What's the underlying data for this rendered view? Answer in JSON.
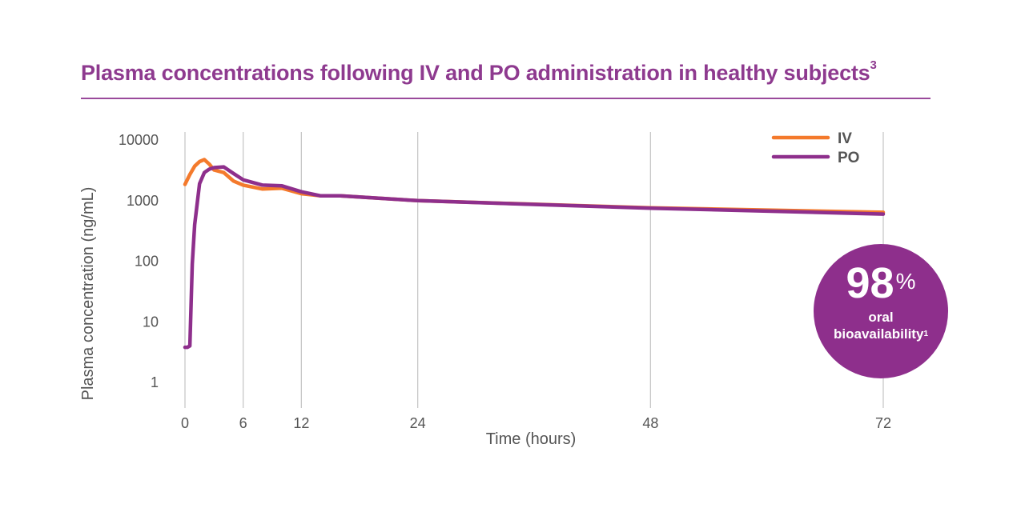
{
  "header": {
    "title": "Plasma concentrations following IV and PO administration in healthy subjects",
    "title_superscript": "3"
  },
  "colors": {
    "title": "#8e3a8f",
    "iv": "#f47a2c",
    "po": "#8e2f8c",
    "grid": "#c8c8c8",
    "axis_text": "#555555",
    "badge": "#8e2f8c"
  },
  "badge": {
    "value": "98",
    "unit": "%",
    "line1": "oral",
    "line2": "bioavailability",
    "line2_superscript": "1"
  },
  "chart_data": {
    "type": "line",
    "title": "Plasma concentrations following IV and PO administration in healthy subjects",
    "xlabel": "Time (hours)",
    "ylabel": "Plasma concentration (ng/mL)",
    "x_scale": "linear",
    "y_scale": "log",
    "xlim": [
      0,
      72
    ],
    "ylim": [
      1,
      10000
    ],
    "x_ticks": [
      0,
      6,
      12,
      24,
      48,
      72
    ],
    "y_ticks": [
      1,
      10,
      100,
      1000,
      10000
    ],
    "x_tick_labels": [
      "0",
      "6",
      "12",
      "24",
      "48",
      "72"
    ],
    "y_tick_labels": [
      "1",
      "10",
      "100",
      "1000",
      "10000"
    ],
    "grid": "vertical lines at x ticks",
    "legend_position": "top-right",
    "series": [
      {
        "name": "IV",
        "x": [
          0,
          0.5,
          1,
          1.5,
          2,
          2.5,
          3,
          4,
          5,
          6,
          8,
          10,
          12,
          14,
          16,
          24,
          48,
          72
        ],
        "y": [
          1850,
          2700,
          3700,
          4400,
          4750,
          4000,
          3200,
          2900,
          2100,
          1800,
          1550,
          1600,
          1300,
          1200,
          1200,
          1000,
          760,
          640
        ]
      },
      {
        "name": "PO",
        "x": [
          0,
          0.25,
          0.5,
          0.75,
          1,
          1.5,
          2,
          2.5,
          3,
          4,
          5,
          6,
          8,
          10,
          12,
          14,
          16,
          24,
          48,
          72
        ],
        "y": [
          3.8,
          3.8,
          4,
          90,
          400,
          1900,
          2900,
          3300,
          3500,
          3600,
          2800,
          2200,
          1800,
          1750,
          1400,
          1200,
          1200,
          1000,
          750,
          600
        ]
      }
    ]
  }
}
